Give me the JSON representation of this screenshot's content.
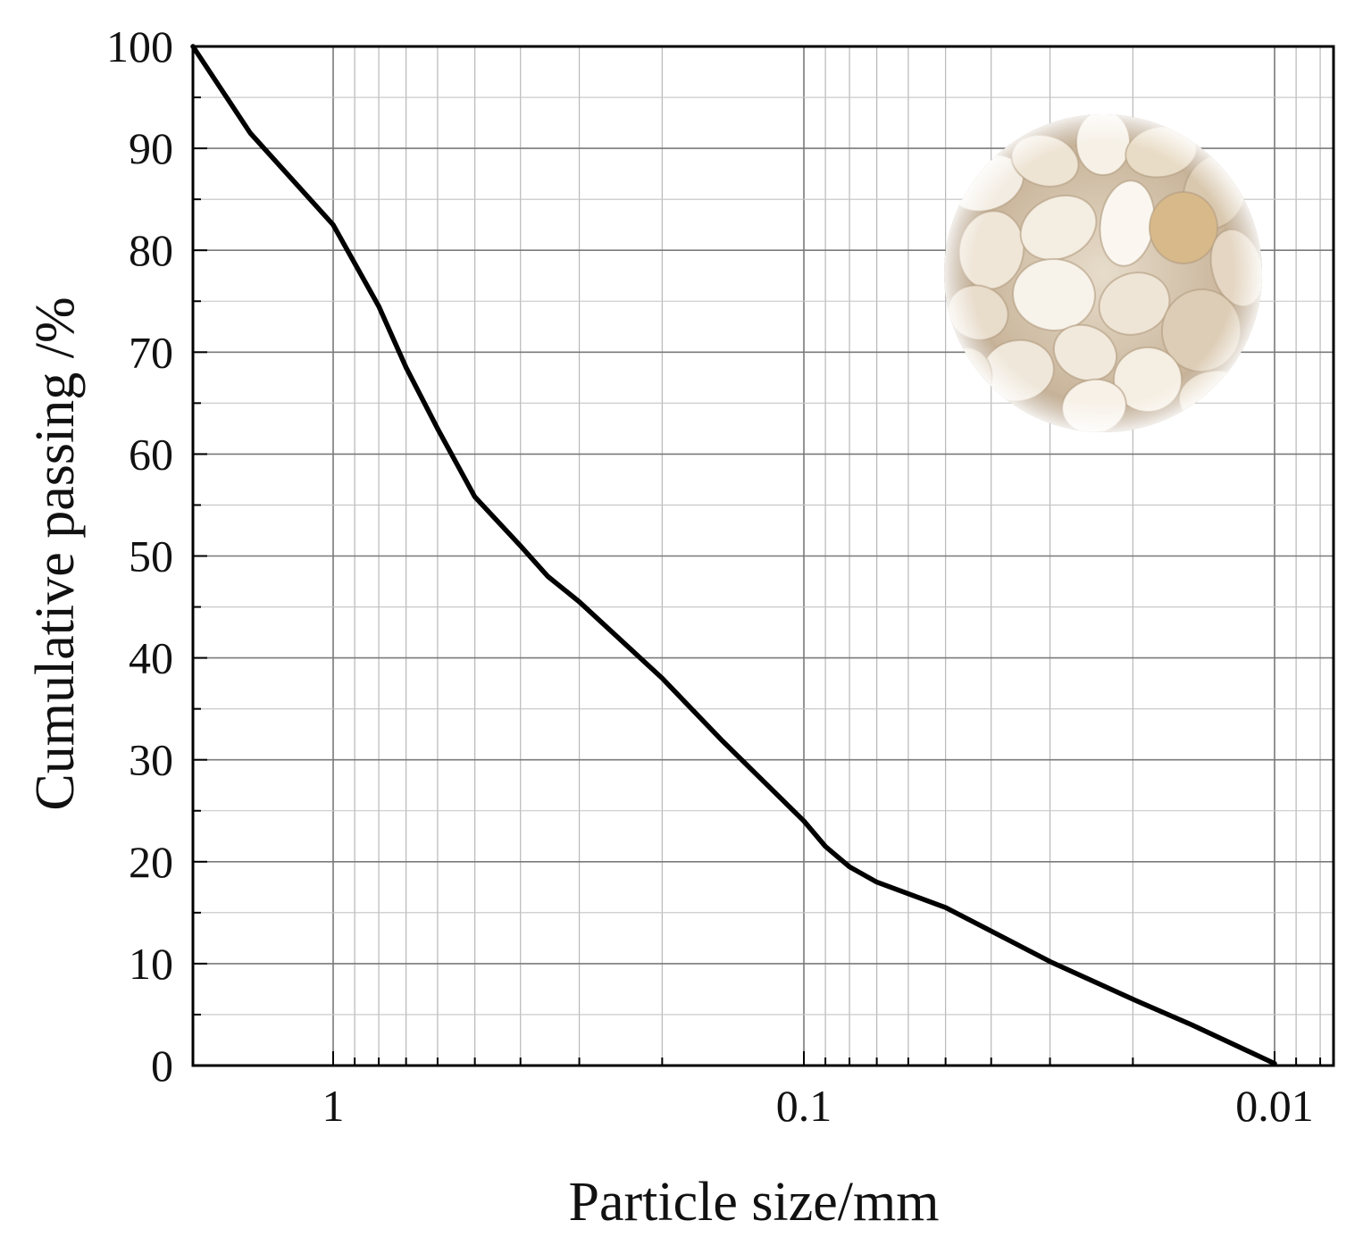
{
  "chart_data": {
    "type": "line",
    "xlabel": "Particle size/mm",
    "ylabel": "Cumulative passing /%",
    "x_scale": "log",
    "x_reversed": true,
    "xlim": [
      2,
      0.0075
    ],
    "ylim": [
      0,
      100
    ],
    "x_ticks": [
      1,
      0.1,
      0.01
    ],
    "x_tick_labels": [
      "1",
      "0.1",
      "0.01"
    ],
    "y_ticks": [
      0,
      10,
      20,
      30,
      40,
      50,
      60,
      70,
      80,
      90,
      100
    ],
    "y_tick_labels": [
      "0",
      "10",
      "20",
      "30",
      "40",
      "50",
      "60",
      "70",
      "80",
      "90",
      "100"
    ],
    "grid": true,
    "series_color": "#000000",
    "x": [
      2.0,
      1.5,
      1.0,
      0.8,
      0.7,
      0.6,
      0.5,
      0.4,
      0.35,
      0.3,
      0.2,
      0.15,
      0.1,
      0.09,
      0.08,
      0.07,
      0.05,
      0.04,
      0.03,
      0.02,
      0.015,
      0.01
    ],
    "y": [
      100,
      91.5,
      82.5,
      74.5,
      68.5,
      62.5,
      55.8,
      51.0,
      48.0,
      45.5,
      38.0,
      32.0,
      24.0,
      21.5,
      19.5,
      18.0,
      15.5,
      13.2,
      10.2,
      6.5,
      4.0,
      0.2
    ]
  },
  "inset_image": {
    "subject": "sand-grains-photo"
  }
}
